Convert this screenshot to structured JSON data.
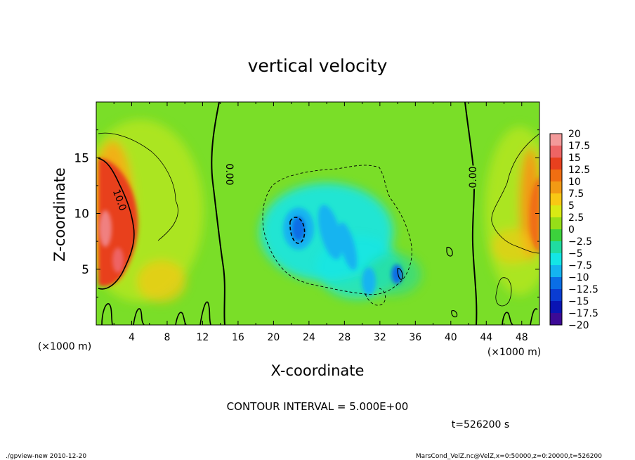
{
  "chart_data": {
    "type": "heatmap",
    "title": "vertical velocity",
    "xlabel": "X-coordinate",
    "ylabel": "Z-coordinate",
    "x_unit": "(×1000 m)",
    "y_unit": "(×1000 m)",
    "xlim": [
      0,
      50
    ],
    "ylim": [
      0,
      20
    ],
    "x_ticks": [
      4,
      8,
      12,
      16,
      20,
      24,
      28,
      32,
      36,
      40,
      44,
      48
    ],
    "x_tick_labels": [
      "4",
      "8",
      "12",
      "16",
      "20",
      "24",
      "28",
      "32",
      "36",
      "40",
      "44",
      "48"
    ],
    "y_ticks": [
      5,
      10,
      15
    ],
    "y_tick_labels": [
      "5",
      "10",
      "15"
    ],
    "colorbar": {
      "min": -20,
      "max": 20,
      "labels": [
        "20",
        "17.5",
        "15",
        "12.5",
        "10",
        "7.5",
        "5",
        "2.5",
        "0",
        "−2.5",
        "−5",
        "−7.5",
        "−10",
        "−12.5",
        "−15",
        "−17.5",
        "−20"
      ],
      "colors": [
        "#f39a9a",
        "#ee6464",
        "#e8401e",
        "#f06e12",
        "#f29a14",
        "#f8c814",
        "#d8ea14",
        "#96de18",
        "#3cd23c",
        "#20dca0",
        "#14e6e6",
        "#14b4f0",
        "#0a6ee6",
        "#0a3cd2",
        "#0a14b4",
        "#3c0a96"
      ]
    },
    "contour_interval": "CONTOUR INTERVAL = 5.000E+00",
    "contour_labels": [
      "10.0",
      "0.00",
      "0.00"
    ],
    "grid": false,
    "colors": {
      "updraft": "#e8401e",
      "downdraft": "#14d2e6",
      "background": "#7ade28"
    }
  },
  "time_label": "t=526200 s",
  "footer": {
    "left": "./gpview-new   2010-12-20",
    "right": "MarsCond_VelZ.nc@VelZ,x=0:50000,z=0:20000,t=526200"
  }
}
